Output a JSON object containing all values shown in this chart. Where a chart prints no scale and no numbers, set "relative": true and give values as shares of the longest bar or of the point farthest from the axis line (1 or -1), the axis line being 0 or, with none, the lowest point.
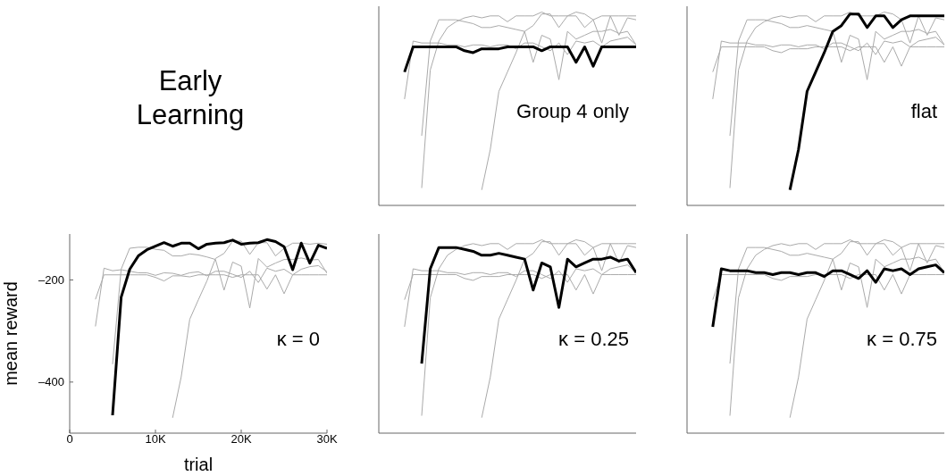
{
  "chart_data": [
    {
      "type": "other",
      "title": "Early Learning"
    },
    {
      "type": "line",
      "annotations": [
        "Group 4 only"
      ],
      "relative": true,
      "tick_labels": false,
      "categories": [
        null,
        null,
        null,
        null,
        null,
        null,
        null,
        null,
        null,
        null,
        null,
        null,
        null,
        null,
        null,
        null,
        null,
        null,
        null,
        null,
        null,
        null,
        null,
        null,
        null,
        null,
        null,
        null,
        null,
        null,
        null
      ],
      "series": [
        {
          "color": "#aaaaaa",
          "values": [
            null,
            null,
            null,
            null,
            null,
            0.09,
            0.7,
            0.85,
            0.92,
            0.95,
            0.97,
            0.98,
            0.97,
            0.98,
            0.98,
            0.95,
            0.98,
            0.98,
            0.98,
            1,
            0.98,
            0.98,
            0.98,
            1,
            0.99,
            0.96,
            0.84,
            0.98,
            0.88,
            0.97,
            0.96
          ]
        },
        {
          "color": "#aaaaaa",
          "values": [
            null,
            null,
            null,
            null,
            null,
            0.36,
            0.85,
            0.96,
            0.96,
            0.96,
            0.95,
            0.94,
            0.92,
            0.92,
            0.93,
            0.92,
            0.91,
            0.9,
            0.74,
            0.88,
            0.86,
            0.65,
            0.9,
            0.86,
            0.88,
            0.9,
            0.9,
            0.91,
            0.89,
            0.9,
            0.83
          ]
        },
        {
          "color": "#aaaaaa",
          "values": [
            null,
            null,
            null,
            0.55,
            0.85,
            0.84,
            0.84,
            0.84,
            0.83,
            0.83,
            0.82,
            0.83,
            0.83,
            0.82,
            0.83,
            0.83,
            0.81,
            0.84,
            0.84,
            0.82,
            0.8,
            0.84,
            0.78,
            0.85,
            0.84,
            0.85,
            0.82,
            0.85,
            0.86,
            0.87,
            0.83
          ]
        },
        {
          "color": "#aaaaaa",
          "values": [
            null,
            null,
            null,
            null,
            null,
            null,
            null,
            null,
            null,
            null,
            null,
            null,
            0.08,
            0.29,
            0.59,
            0.69,
            0.79,
            0.9,
            0.93,
            0.99,
            0.99,
            0.92,
            0.98,
            0.98,
            0.92,
            0.96,
            0.98,
            0.98,
            0.98,
            0.98,
            0.98
          ]
        },
        {
          "color": "#000000",
          "values": [
            null,
            null,
            null,
            0.69,
            0.82,
            0.82,
            0.82,
            0.82,
            0.82,
            0.82,
            0.8,
            0.79,
            0.81,
            0.81,
            0.81,
            0.82,
            0.82,
            0.82,
            0.82,
            0.8,
            0.82,
            0.82,
            0.82,
            0.74,
            0.82,
            0.72,
            0.82,
            0.82,
            0.82,
            0.82,
            0.82
          ]
        }
      ]
    },
    {
      "type": "line",
      "annotations": [
        "flat"
      ],
      "relative": true,
      "tick_labels": false,
      "categories": [
        null,
        null,
        null,
        null,
        null,
        null,
        null,
        null,
        null,
        null,
        null,
        null,
        null,
        null,
        null,
        null,
        null,
        null,
        null,
        null,
        null,
        null,
        null,
        null,
        null,
        null,
        null,
        null,
        null,
        null,
        null
      ],
      "series": [
        {
          "color": "#aaaaaa",
          "values": [
            null,
            null,
            null,
            null,
            null,
            0.09,
            0.7,
            0.85,
            0.92,
            0.95,
            0.97,
            0.98,
            0.97,
            0.98,
            0.98,
            0.95,
            0.98,
            0.98,
            0.98,
            1,
            0.98,
            0.98,
            0.98,
            1,
            0.99,
            0.96,
            0.84,
            0.98,
            0.88,
            0.97,
            0.96
          ]
        },
        {
          "color": "#aaaaaa",
          "values": [
            null,
            null,
            null,
            null,
            null,
            0.36,
            0.85,
            0.96,
            0.96,
            0.96,
            0.95,
            0.94,
            0.92,
            0.92,
            0.93,
            0.92,
            0.91,
            0.9,
            0.74,
            0.88,
            0.86,
            0.65,
            0.9,
            0.86,
            0.88,
            0.9,
            0.9,
            0.91,
            0.89,
            0.9,
            0.83
          ]
        },
        {
          "color": "#aaaaaa",
          "values": [
            null,
            null,
            null,
            0.55,
            0.85,
            0.84,
            0.84,
            0.84,
            0.83,
            0.83,
            0.82,
            0.83,
            0.83,
            0.82,
            0.83,
            0.83,
            0.81,
            0.84,
            0.84,
            0.82,
            0.8,
            0.84,
            0.78,
            0.85,
            0.84,
            0.85,
            0.82,
            0.85,
            0.86,
            0.87,
            0.83
          ]
        },
        {
          "color": "#aaaaaa",
          "values": [
            null,
            null,
            null,
            0.69,
            0.82,
            0.82,
            0.82,
            0.82,
            0.82,
            0.82,
            0.8,
            0.79,
            0.81,
            0.81,
            0.81,
            0.82,
            0.82,
            0.82,
            0.82,
            0.8,
            0.82,
            0.82,
            0.82,
            0.74,
            0.82,
            0.72,
            0.82,
            0.82,
            0.82,
            0.82,
            0.82
          ]
        },
        {
          "color": "#000000",
          "values": [
            null,
            null,
            null,
            null,
            null,
            null,
            null,
            null,
            null,
            null,
            null,
            null,
            0.08,
            0.29,
            0.59,
            0.69,
            0.79,
            0.9,
            0.93,
            0.99,
            0.99,
            0.92,
            0.98,
            0.98,
            0.92,
            0.96,
            0.98,
            0.98,
            0.98,
            0.98,
            0.98
          ]
        }
      ]
    },
    {
      "type": "line",
      "annotations": [
        "κ = 0"
      ],
      "xlabel": "trial",
      "ylabel": "mean reward",
      "xlim": [
        0,
        30000
      ],
      "ylim": [
        -500,
        -110
      ],
      "xticks": [
        0,
        {
          "value": 10000,
          "label": "10K"
        },
        {
          "value": 20000,
          "label": "20K"
        },
        {
          "value": 30000,
          "label": "30K"
        }
      ],
      "yticks": [
        {
          "value": -400,
          "label": "–400"
        },
        {
          "value": -200,
          "label": "–200"
        }
      ],
      "x": [
        3000,
        4000,
        5000,
        6000,
        7000,
        8000,
        9000,
        10000,
        11000,
        12000,
        13000,
        14000,
        15000,
        16000,
        17000,
        18000,
        19000,
        20000,
        21000,
        22000,
        23000,
        24000,
        25000,
        26000,
        27000,
        28000,
        29000,
        30000
      ],
      "series": [
        {
          "color": "#aaaaaa",
          "values": [
            null,
            null,
            -365,
            -179,
            -138,
            -136,
            -136,
            -140,
            -142,
            -153,
            -153,
            -149,
            -151,
            -155,
            -160,
            -220,
            -165,
            -173,
            -255,
            -158,
            -175,
            -167,
            -160,
            -160,
            -157,
            -161,
            -160,
            -187
          ]
        },
        {
          "color": "#aaaaaa",
          "values": [
            -291,
            -177,
            -182,
            -180,
            -183,
            -186,
            -186,
            -191,
            -186,
            -187,
            -191,
            -186,
            -184,
            -192,
            -183,
            -183,
            -189,
            -195,
            -183,
            -205,
            -177,
            -183,
            -179,
            -190,
            -179,
            -174,
            -172,
            -184
          ]
        },
        {
          "color": "#aaaaaa",
          "values": [
            -238,
            -190,
            -190,
            -190,
            -190,
            -190,
            -190,
            -195,
            -202,
            -192,
            -192,
            -194,
            -190,
            -190,
            -190,
            -190,
            -195,
            -190,
            -190,
            -190,
            -218,
            -190,
            -227,
            -190,
            -190,
            -190,
            -190,
            -190
          ]
        },
        {
          "color": "#aaaaaa",
          "values": [
            null,
            null,
            null,
            null,
            null,
            null,
            null,
            null,
            null,
            -470,
            -390,
            -277,
            -239,
            -202,
            -158,
            -148,
            -124,
            -124,
            -150,
            -127,
            -127,
            -153,
            -138,
            -128,
            -128,
            -130,
            -128,
            -130
          ]
        },
        {
          "color": "#000000",
          "values": [
            null,
            null,
            -465,
            -234,
            -179,
            -153,
            -141,
            -134,
            -127,
            -134,
            -128,
            -128,
            -139,
            -130,
            -128,
            -127,
            -122,
            -130,
            -128,
            -127,
            -121,
            -125,
            -135,
            -180,
            -128,
            -167,
            -132,
            -138
          ]
        }
      ]
    },
    {
      "type": "line",
      "annotations": [
        "κ = 0.25"
      ],
      "relative": true,
      "tick_labels": false,
      "categories": [
        null,
        null,
        null,
        null,
        null,
        null,
        null,
        null,
        null,
        null,
        null,
        null,
        null,
        null,
        null,
        null,
        null,
        null,
        null,
        null,
        null,
        null,
        null,
        null,
        null,
        null,
        null,
        null,
        null,
        null,
        null
      ],
      "series": [
        {
          "color": "#aaaaaa",
          "values": [
            null,
            null,
            null,
            null,
            null,
            0.09,
            0.7,
            0.85,
            0.92,
            0.95,
            0.97,
            0.98,
            0.97,
            0.98,
            0.98,
            0.95,
            0.98,
            0.98,
            0.98,
            1,
            0.98,
            0.98,
            0.98,
            1,
            0.99,
            0.96,
            0.84,
            0.98,
            0.88,
            0.97,
            0.96
          ]
        },
        {
          "color": "#aaaaaa",
          "values": [
            null,
            null,
            null,
            0.55,
            0.85,
            0.84,
            0.84,
            0.84,
            0.83,
            0.83,
            0.82,
            0.83,
            0.83,
            0.82,
            0.83,
            0.83,
            0.81,
            0.84,
            0.84,
            0.82,
            0.8,
            0.84,
            0.78,
            0.85,
            0.84,
            0.85,
            0.82,
            0.85,
            0.86,
            0.87,
            0.83
          ]
        },
        {
          "color": "#aaaaaa",
          "values": [
            null,
            null,
            null,
            0.69,
            0.82,
            0.82,
            0.82,
            0.82,
            0.82,
            0.82,
            0.8,
            0.79,
            0.81,
            0.81,
            0.81,
            0.82,
            0.82,
            0.82,
            0.82,
            0.8,
            0.82,
            0.82,
            0.82,
            0.74,
            0.82,
            0.72,
            0.82,
            0.82,
            0.82,
            0.82,
            0.82
          ]
        },
        {
          "color": "#aaaaaa",
          "values": [
            null,
            null,
            null,
            null,
            null,
            null,
            null,
            null,
            null,
            null,
            null,
            null,
            0.08,
            0.29,
            0.59,
            0.69,
            0.79,
            0.9,
            0.93,
            0.99,
            0.99,
            0.92,
            0.98,
            0.98,
            0.92,
            0.96,
            0.98,
            0.98,
            0.98,
            0.98,
            0.98
          ]
        },
        {
          "color": "#000000",
          "values": [
            null,
            null,
            null,
            null,
            null,
            0.36,
            0.85,
            0.96,
            0.96,
            0.96,
            0.95,
            0.94,
            0.92,
            0.92,
            0.93,
            0.92,
            0.91,
            0.9,
            0.74,
            0.88,
            0.86,
            0.65,
            0.9,
            0.86,
            0.88,
            0.9,
            0.9,
            0.91,
            0.89,
            0.9,
            0.83
          ]
        }
      ]
    },
    {
      "type": "line",
      "annotations": [
        "κ = 0.75"
      ],
      "relative": true,
      "tick_labels": false,
      "categories": [
        null,
        null,
        null,
        null,
        null,
        null,
        null,
        null,
        null,
        null,
        null,
        null,
        null,
        null,
        null,
        null,
        null,
        null,
        null,
        null,
        null,
        null,
        null,
        null,
        null,
        null,
        null,
        null,
        null,
        null,
        null
      ],
      "series": [
        {
          "color": "#aaaaaa",
          "values": [
            null,
            null,
            null,
            null,
            null,
            0.09,
            0.7,
            0.85,
            0.92,
            0.95,
            0.97,
            0.98,
            0.97,
            0.98,
            0.98,
            0.95,
            0.98,
            0.98,
            0.98,
            1,
            0.98,
            0.98,
            0.98,
            1,
            0.99,
            0.96,
            0.84,
            0.98,
            0.88,
            0.97,
            0.96
          ]
        },
        {
          "color": "#aaaaaa",
          "values": [
            null,
            null,
            null,
            null,
            null,
            0.36,
            0.85,
            0.96,
            0.96,
            0.96,
            0.95,
            0.94,
            0.92,
            0.92,
            0.93,
            0.92,
            0.91,
            0.9,
            0.74,
            0.88,
            0.86,
            0.65,
            0.9,
            0.86,
            0.88,
            0.9,
            0.9,
            0.91,
            0.89,
            0.9,
            0.83
          ]
        },
        {
          "color": "#aaaaaa",
          "values": [
            null,
            null,
            null,
            0.69,
            0.82,
            0.82,
            0.82,
            0.82,
            0.82,
            0.82,
            0.8,
            0.79,
            0.81,
            0.81,
            0.81,
            0.82,
            0.82,
            0.82,
            0.82,
            0.8,
            0.82,
            0.82,
            0.82,
            0.74,
            0.82,
            0.72,
            0.82,
            0.82,
            0.82,
            0.82,
            0.82
          ]
        },
        {
          "color": "#aaaaaa",
          "values": [
            null,
            null,
            null,
            null,
            null,
            null,
            null,
            null,
            null,
            null,
            null,
            null,
            0.08,
            0.29,
            0.59,
            0.69,
            0.79,
            0.9,
            0.93,
            0.99,
            0.99,
            0.92,
            0.98,
            0.98,
            0.92,
            0.96,
            0.98,
            0.98,
            0.98,
            0.98,
            0.98
          ]
        },
        {
          "color": "#000000",
          "values": [
            null,
            null,
            null,
            0.55,
            0.85,
            0.84,
            0.84,
            0.84,
            0.83,
            0.83,
            0.82,
            0.83,
            0.83,
            0.82,
            0.83,
            0.83,
            0.81,
            0.84,
            0.84,
            0.82,
            0.8,
            0.84,
            0.78,
            0.85,
            0.84,
            0.85,
            0.82,
            0.85,
            0.86,
            0.87,
            0.83
          ]
        }
      ]
    }
  ]
}
